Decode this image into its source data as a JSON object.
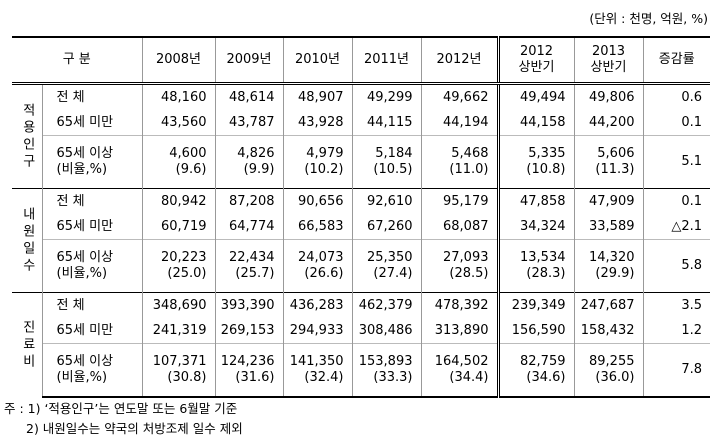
{
  "unit": "(단위 : 천명, 억원, %)",
  "header": {
    "group_label": "구    분",
    "columns": [
      "2008년",
      "2009년",
      "2010년",
      "2011년",
      "2012년",
      "2012\n상반기",
      "2013\n상반기",
      "증감률"
    ]
  },
  "groups": [
    {
      "label": "적용인구",
      "rows": [
        {
          "label": "전      체",
          "values": [
            "48,160",
            "48,614",
            "48,907",
            "49,299",
            "49,662",
            "49,494",
            "49,806"
          ],
          "rate": "0.6"
        },
        {
          "label": "65세 미만",
          "values": [
            "43,560",
            "43,787",
            "43,928",
            "44,115",
            "44,194",
            "44,158",
            "44,200"
          ],
          "rate": "0.1"
        },
        {
          "label": "65세 이상",
          "sub_label": "(비율,%)",
          "values": [
            "4,600",
            "4,826",
            "4,979",
            "5,184",
            "5,468",
            "5,335",
            "5,606"
          ],
          "ratios": [
            "(9.6)",
            "(9.9)",
            "(10.2)",
            "(10.5)",
            "(11.0)",
            "(10.8)",
            "(11.3)"
          ],
          "rate": "5.1"
        }
      ]
    },
    {
      "label": "내원일수",
      "rows": [
        {
          "label": "전      체",
          "values": [
            "80,942",
            "87,208",
            "90,656",
            "92,610",
            "95,179",
            "47,858",
            "47,909"
          ],
          "rate": "0.1"
        },
        {
          "label": "65세 미만",
          "values": [
            "60,719",
            "64,774",
            "66,583",
            "67,260",
            "68,087",
            "34,324",
            "33,589"
          ],
          "rate": "△2.1"
        },
        {
          "label": "65세 이상",
          "sub_label": "(비율,%)",
          "values": [
            "20,223",
            "22,434",
            "24,073",
            "25,350",
            "27,093",
            "13,534",
            "14,320"
          ],
          "ratios": [
            "(25.0)",
            "(25.7)",
            "(26.6)",
            "(27.4)",
            "(28.5)",
            "(28.3)",
            "(29.9)"
          ],
          "rate": "5.8"
        }
      ]
    },
    {
      "label": "진료비",
      "rows": [
        {
          "label": "전      체",
          "values": [
            "348,690",
            "393,390",
            "436,283",
            "462,379",
            "478,392",
            "239,349",
            "247,687"
          ],
          "rate": "3.5"
        },
        {
          "label": "65세 미만",
          "values": [
            "241,319",
            "269,153",
            "294,933",
            "308,486",
            "313,890",
            "156,590",
            "158,432"
          ],
          "rate": "1.2"
        },
        {
          "label": "65세 이상",
          "sub_label": "(비율,%)",
          "values": [
            "107,371",
            "124,236",
            "141,350",
            "153,893",
            "164,502",
            "82,759",
            "89,255"
          ],
          "ratios": [
            "(30.8)",
            "(31.6)",
            "(32.4)",
            "(33.3)",
            "(34.4)",
            "(34.6)",
            "(36.0)"
          ],
          "rate": "7.8"
        }
      ]
    }
  ],
  "notes": [
    "주 : 1) ‘적용인구’는 연도말 또는 6월말 기준",
    "2) 내원일수는 약국의 처방조제 일수 제외"
  ]
}
